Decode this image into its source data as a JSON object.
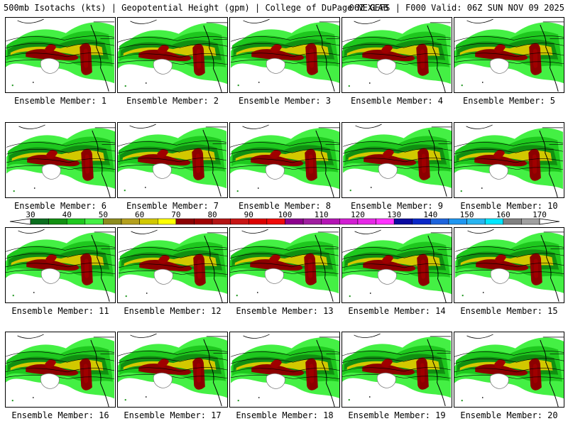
{
  "header": {
    "left": "500mb Isotachs (kts) | Geopotential Height (gpm) | College of DuPage NEXLAB",
    "right": "06Z GEFS | F000 Valid: 06Z SUN NOV 09 2025"
  },
  "members": [
    {
      "label": "Ensemble Member: 1"
    },
    {
      "label": "Ensemble Member: 2"
    },
    {
      "label": "Ensemble Member: 3"
    },
    {
      "label": "Ensemble Member: 4"
    },
    {
      "label": "Ensemble Member: 5"
    },
    {
      "label": "Ensemble Member: 6"
    },
    {
      "label": "Ensemble Member: 7"
    },
    {
      "label": "Ensemble Member: 8"
    },
    {
      "label": "Ensemble Member: 9"
    },
    {
      "label": "Ensemble Member: 10"
    },
    {
      "label": "Ensemble Member: 11"
    },
    {
      "label": "Ensemble Member: 12"
    },
    {
      "label": "Ensemble Member: 13"
    },
    {
      "label": "Ensemble Member: 14"
    },
    {
      "label": "Ensemble Member: 15"
    },
    {
      "label": "Ensemble Member: 16"
    },
    {
      "label": "Ensemble Member: 17"
    },
    {
      "label": "Ensemble Member: 18"
    },
    {
      "label": "Ensemble Member: 19"
    },
    {
      "label": "Ensemble Member: 20"
    }
  ],
  "colorbar": {
    "units": "kts",
    "tick_labels": [
      "30",
      "40",
      "50",
      "60",
      "70",
      "80",
      "90",
      "100",
      "110",
      "120",
      "130",
      "140",
      "150",
      "160",
      "170"
    ],
    "bins": [
      {
        "from": 30,
        "to": 35,
        "color": "#0a6e1e"
      },
      {
        "from": 35,
        "to": 40,
        "color": "#118f11"
      },
      {
        "from": 40,
        "to": 45,
        "color": "#1ec81e"
      },
      {
        "from": 45,
        "to": 50,
        "color": "#44f044"
      },
      {
        "from": 50,
        "to": 55,
        "color": "#8c8c1e"
      },
      {
        "from": 55,
        "to": 60,
        "color": "#b4a01e"
      },
      {
        "from": 60,
        "to": 65,
        "color": "#d2c800"
      },
      {
        "from": 65,
        "to": 70,
        "color": "#ffff00"
      },
      {
        "from": 70,
        "to": 75,
        "color": "#8c0000"
      },
      {
        "from": 75,
        "to": 80,
        "color": "#a00000"
      },
      {
        "from": 80,
        "to": 85,
        "color": "#b41414"
      },
      {
        "from": 85,
        "to": 90,
        "color": "#c81414"
      },
      {
        "from": 90,
        "to": 95,
        "color": "#dc0000"
      },
      {
        "from": 95,
        "to": 100,
        "color": "#f00a0a"
      },
      {
        "from": 100,
        "to": 105,
        "color": "#8c008c"
      },
      {
        "from": 105,
        "to": 110,
        "color": "#a01ea0"
      },
      {
        "from": 110,
        "to": 115,
        "color": "#b414b4"
      },
      {
        "from": 115,
        "to": 120,
        "color": "#d21ed2"
      },
      {
        "from": 120,
        "to": 125,
        "color": "#e628e6"
      },
      {
        "from": 125,
        "to": 130,
        "color": "#ff32ff"
      },
      {
        "from": 130,
        "to": 135,
        "color": "#0a0aa0"
      },
      {
        "from": 135,
        "to": 140,
        "color": "#0a28c8"
      },
      {
        "from": 140,
        "to": 145,
        "color": "#1e64dc"
      },
      {
        "from": 145,
        "to": 150,
        "color": "#1e96f0"
      },
      {
        "from": 150,
        "to": 155,
        "color": "#28b4f0"
      },
      {
        "from": 155,
        "to": 160,
        "color": "#00e6ff"
      },
      {
        "from": 160,
        "to": 165,
        "color": "#808080"
      },
      {
        "from": 165,
        "to": 170,
        "color": "#a0a0a0"
      }
    ]
  }
}
